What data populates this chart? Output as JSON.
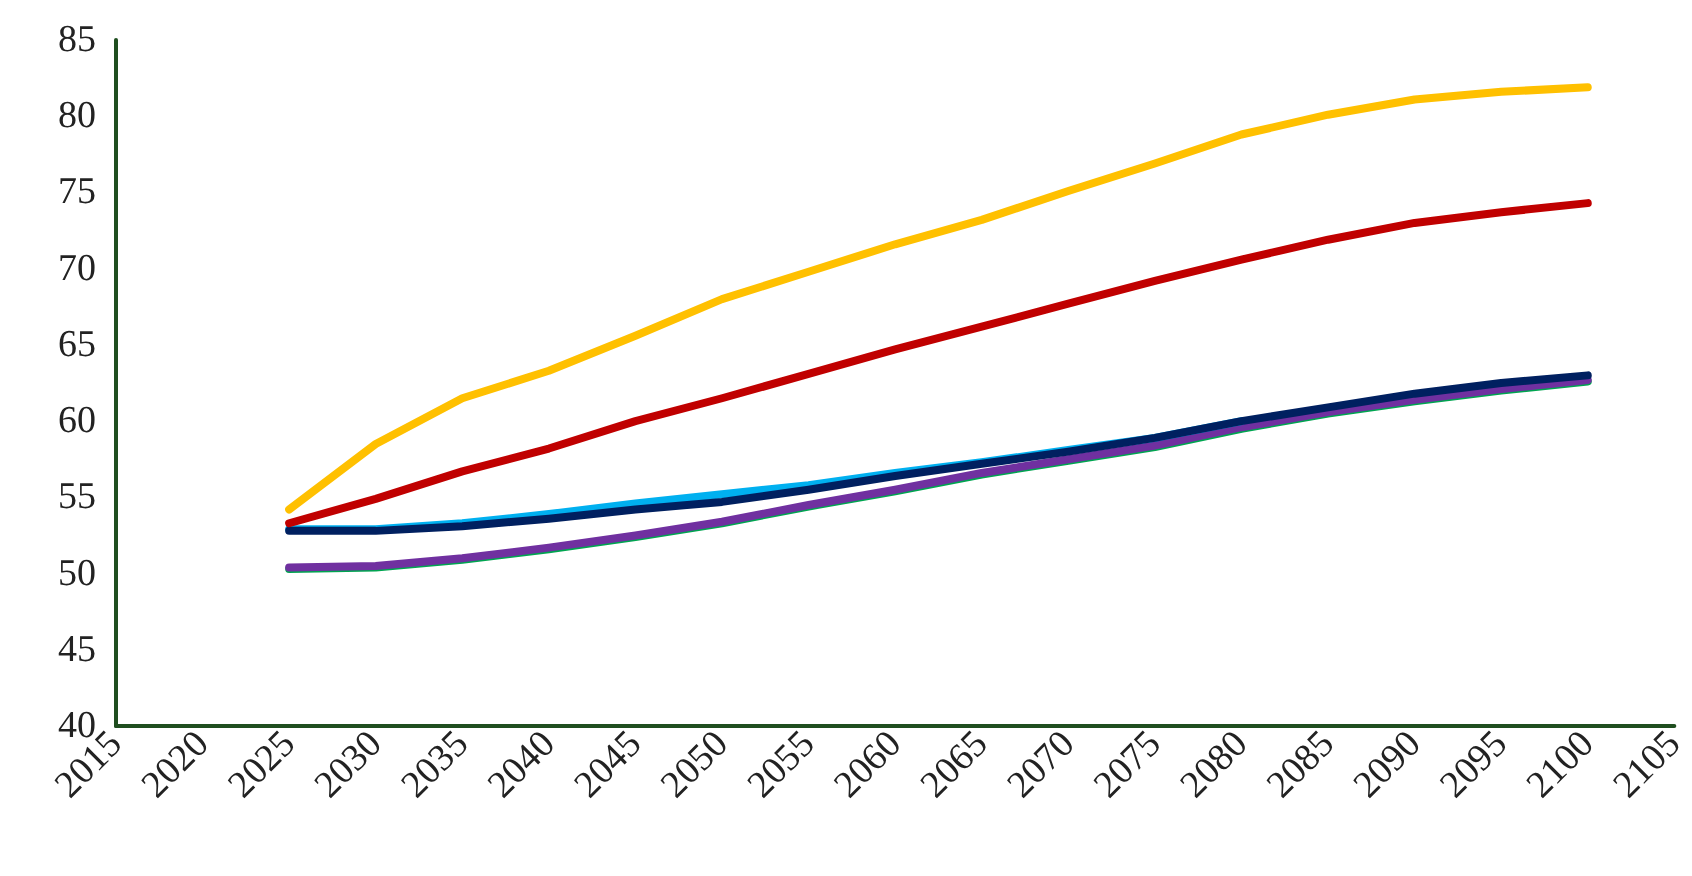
{
  "chart_data": {
    "type": "line",
    "x": [
      2025,
      2030,
      2035,
      2040,
      2045,
      2050,
      2055,
      2060,
      2065,
      2070,
      2075,
      2080,
      2085,
      2090,
      2095,
      2100
    ],
    "series": [
      {
        "color": "#00a550",
        "values": [
          50.3,
          50.4,
          50.9,
          51.6,
          52.4,
          53.3,
          54.4,
          55.4,
          56.5,
          57.4,
          58.3,
          59.5,
          60.5,
          61.3,
          62.0,
          62.6
        ]
      },
      {
        "color": "#7030a0",
        "values": [
          50.4,
          50.5,
          51.0,
          51.7,
          52.5,
          53.4,
          54.5,
          55.5,
          56.6,
          57.5,
          58.4,
          59.6,
          60.6,
          61.4,
          62.1,
          62.7
        ]
      },
      {
        "color": "#00b0f0",
        "values": [
          52.9,
          52.9,
          53.3,
          53.9,
          54.6,
          55.2,
          55.8,
          56.6,
          57.3,
          58.1,
          58.9,
          60.0,
          null,
          null,
          null,
          null
        ]
      },
      {
        "color": "#002060",
        "values": [
          52.8,
          52.8,
          53.1,
          53.6,
          54.2,
          54.7,
          55.5,
          56.4,
          57.2,
          58.0,
          58.9,
          60.0,
          60.9,
          61.8,
          62.5,
          63.0
        ]
      },
      {
        "color": "#c00000",
        "values": [
          53.3,
          54.9,
          56.7,
          58.2,
          60.0,
          61.5,
          63.1,
          64.7,
          66.2,
          67.7,
          69.2,
          70.6,
          71.9,
          73.0,
          73.7,
          74.3
        ]
      },
      {
        "color": "#ffc000",
        "values": [
          54.2,
          58.5,
          61.5,
          63.3,
          65.6,
          68.0,
          69.8,
          71.6,
          73.2,
          75.1,
          76.9,
          78.8,
          80.1,
          81.1,
          81.6,
          81.9
        ]
      }
    ],
    "xlim": [
      2015,
      2105
    ],
    "xticks": [
      2015,
      2020,
      2025,
      2030,
      2035,
      2040,
      2045,
      2050,
      2055,
      2060,
      2065,
      2070,
      2075,
      2080,
      2085,
      2090,
      2095,
      2100,
      2105
    ],
    "ylim": [
      40,
      85
    ],
    "yticks": [
      40,
      45,
      50,
      55,
      60,
      65,
      70,
      75,
      80,
      85
    ],
    "grid": false,
    "marker": "none",
    "line_style": "solid"
  }
}
